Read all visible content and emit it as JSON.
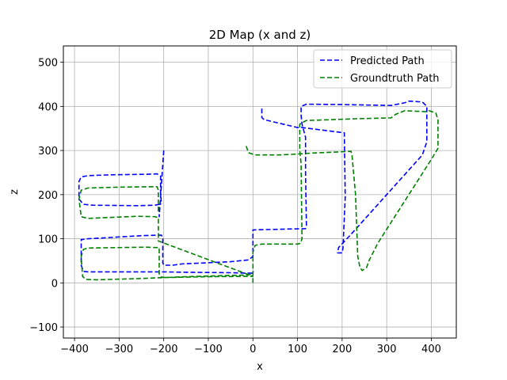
{
  "chart_data": {
    "type": "line",
    "title": "2D Map (x and z)",
    "xlabel": "x",
    "ylabel": "z",
    "xlim": [
      -425,
      456
    ],
    "ylim": [
      -125,
      537
    ],
    "xticks": [
      -400,
      -300,
      -200,
      -100,
      0,
      100,
      200,
      300,
      400
    ],
    "yticks": [
      -100,
      0,
      100,
      200,
      300,
      400,
      500
    ],
    "grid": true,
    "legend_position": "top-right",
    "series": [
      {
        "name": "Predicted Path",
        "color": "#0000ff",
        "style": "dashed",
        "points": [
          [
            20,
            395
          ],
          [
            20,
            375
          ],
          [
            25,
            370
          ],
          [
            100,
            352
          ],
          [
            110,
            352
          ],
          [
            205,
            340
          ],
          [
            205,
            330
          ],
          [
            207,
            195
          ],
          [
            202,
            80
          ],
          [
            200,
            68
          ],
          [
            190,
            68
          ],
          [
            192,
            80
          ],
          [
            220,
            110
          ],
          [
            380,
            290
          ],
          [
            390,
            320
          ],
          [
            390,
            400
          ],
          [
            380,
            410
          ],
          [
            350,
            412
          ],
          [
            340,
            408
          ],
          [
            310,
            402
          ],
          [
            200,
            404
          ],
          [
            120,
            405
          ],
          [
            108,
            400
          ],
          [
            108,
            380
          ],
          [
            110,
            360
          ],
          [
            118,
            330
          ],
          [
            118,
            250
          ],
          [
            120,
            130
          ],
          [
            118,
            123
          ],
          [
            0,
            120
          ],
          [
            0,
            100
          ],
          [
            0,
            60
          ],
          [
            -10,
            52
          ],
          [
            -50,
            48
          ],
          [
            -160,
            43
          ],
          [
            -180,
            40
          ],
          [
            -200,
            40
          ],
          [
            -202,
            45
          ],
          [
            -202,
            100
          ],
          [
            -205,
            108
          ],
          [
            -215,
            108
          ],
          [
            -250,
            107
          ],
          [
            -370,
            100
          ],
          [
            -385,
            98
          ],
          [
            -385,
            40
          ],
          [
            -380,
            26
          ],
          [
            -370,
            25
          ],
          [
            -200,
            25
          ],
          [
            -150,
            24
          ],
          [
            -50,
            23
          ],
          [
            0,
            22
          ],
          [
            2,
            26
          ]
        ],
        "points_part2": [
          [
            -200,
            300
          ],
          [
            -210,
            150
          ],
          [
            -210,
            178
          ],
          [
            -220,
            176
          ],
          [
            -260,
            175
          ],
          [
            -360,
            176
          ],
          [
            -380,
            178
          ],
          [
            -390,
            190
          ],
          [
            -390,
            230
          ],
          [
            -385,
            240
          ],
          [
            -370,
            243
          ],
          [
            -320,
            245
          ],
          [
            -240,
            246
          ],
          [
            -215,
            247
          ],
          [
            -207,
            242
          ],
          [
            -207,
            200
          ],
          [
            -205,
            178
          ]
        ]
      },
      {
        "name": "Groundtruth Path",
        "color": "#008000",
        "style": "dashed",
        "points": [
          [
            -15,
            310
          ],
          [
            -10,
            295
          ],
          [
            5,
            290
          ],
          [
            60,
            290
          ],
          [
            100,
            292
          ],
          [
            130,
            294
          ],
          [
            220,
            298
          ],
          [
            222,
            290
          ],
          [
            230,
            200
          ],
          [
            235,
            60
          ],
          [
            240,
            35
          ],
          [
            245,
            28
          ],
          [
            255,
            35
          ],
          [
            260,
            50
          ],
          [
            280,
            90
          ],
          [
            400,
            280
          ],
          [
            415,
            305
          ],
          [
            415,
            370
          ],
          [
            410,
            385
          ],
          [
            395,
            390
          ],
          [
            390,
            388
          ],
          [
            340,
            390
          ],
          [
            320,
            382
          ],
          [
            310,
            374
          ],
          [
            230,
            372
          ],
          [
            180,
            370
          ],
          [
            120,
            368
          ],
          [
            105,
            360
          ],
          [
            105,
            300
          ],
          [
            108,
            270
          ],
          [
            110,
            100
          ],
          [
            107,
            90
          ],
          [
            100,
            88
          ],
          [
            20,
            88
          ],
          [
            5,
            85
          ],
          [
            0,
            70
          ],
          [
            0,
            20
          ],
          [
            0,
            0
          ]
        ],
        "points_part2": [
          [
            -5,
            20
          ],
          [
            -10,
            18
          ],
          [
            -150,
            14
          ],
          [
            -195,
            12
          ],
          [
            -205,
            13
          ],
          [
            -210,
            20
          ],
          [
            -210,
            80
          ],
          [
            -220,
            80
          ],
          [
            -240,
            81
          ],
          [
            -370,
            79
          ],
          [
            -380,
            76
          ],
          [
            -385,
            60
          ],
          [
            -382,
            15
          ],
          [
            -375,
            8
          ],
          [
            -350,
            7
          ],
          [
            -250,
            10
          ],
          [
            -200,
            12
          ],
          [
            -100,
            14
          ],
          [
            0,
            15
          ],
          [
            -212,
            95
          ],
          [
            -212,
            148
          ],
          [
            -220,
            150
          ],
          [
            -260,
            151
          ],
          [
            -370,
            146
          ],
          [
            -385,
            150
          ],
          [
            -390,
            190
          ],
          [
            -385,
            210
          ],
          [
            -370,
            215
          ],
          [
            -300,
            217
          ],
          [
            -215,
            218
          ],
          [
            -212,
            210
          ],
          [
            -212,
            160
          ]
        ]
      }
    ]
  }
}
